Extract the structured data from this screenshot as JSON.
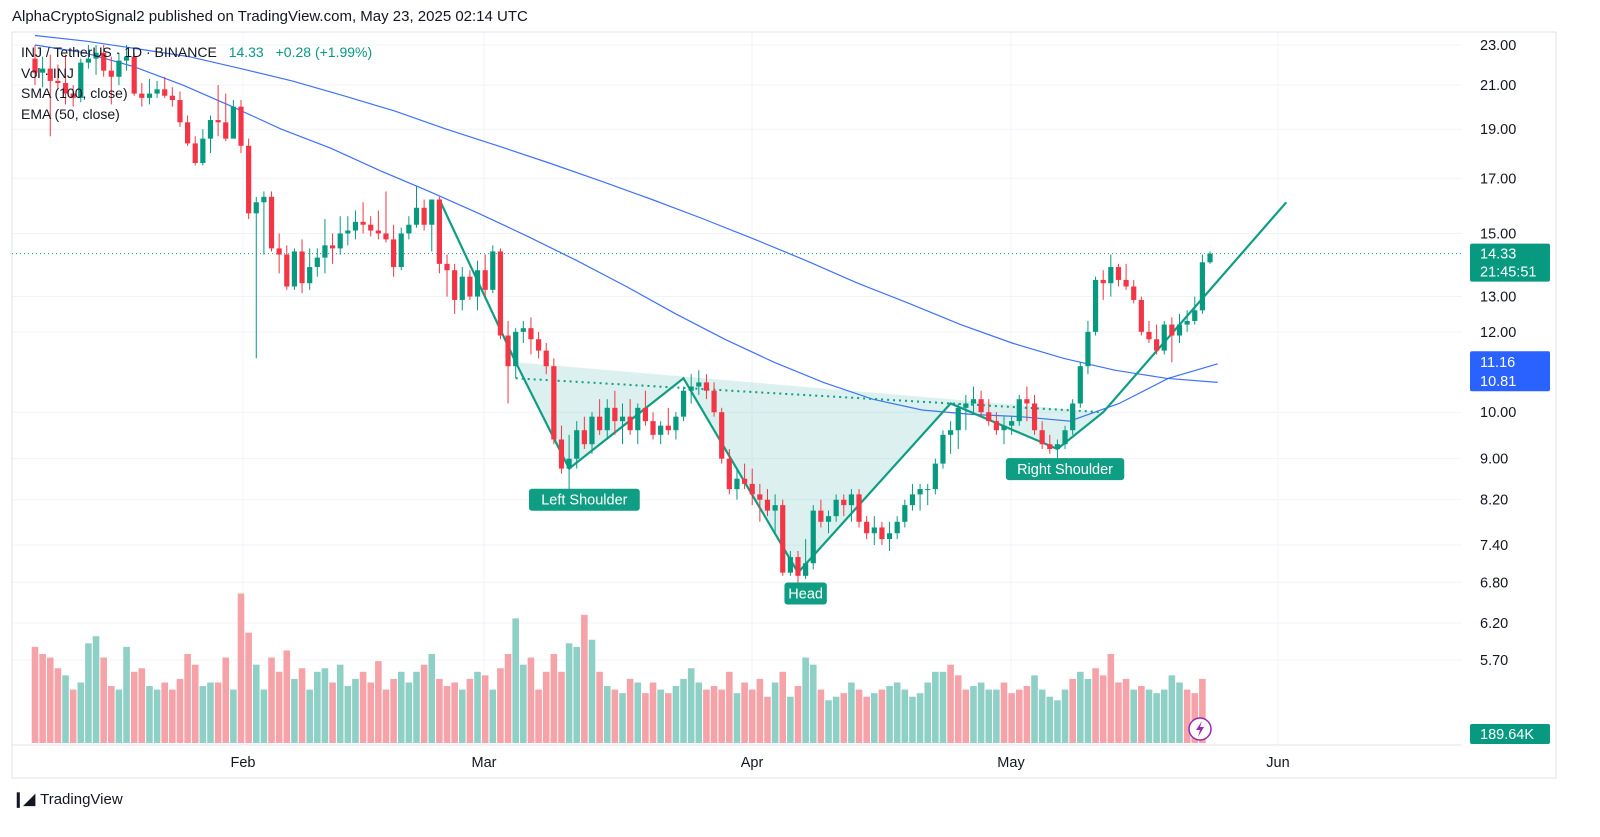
{
  "header": {
    "publish_line": "AlphaCryptoSignal2 published on TradingView.com, May 23, 2025 02:14 UTC"
  },
  "legend": {
    "symbol": "INJ / TetherUS · 1D · BINANCE",
    "price": "14.33",
    "change": "+0.28 (+1.99%)",
    "vol": "Vol · INJ",
    "sma": "SMA (100, close)",
    "ema": "EMA (50, close)"
  },
  "footer": {
    "brand": "TradingView"
  },
  "colors": {
    "up": "#089981",
    "down": "#f23645",
    "vol_up": "#8fd0c6",
    "vol_down": "#f5a3a8",
    "ma_line": "#2962ff",
    "pattern": "#0f9d83",
    "fill": "rgba(38,166,154,0.16)",
    "price_badge": "#089981",
    "ma_badge": "#2962ff"
  },
  "chart_data": {
    "type": "candlestick",
    "y_scale": "log",
    "ylim": [
      5.35,
      23.0
    ],
    "y_ticks": [
      "23.00",
      "21.00",
      "19.00",
      "17.00",
      "15.00",
      "13.00",
      "12.00",
      "10.00",
      "9.00",
      "8.20",
      "7.40",
      "6.80",
      "6.20",
      "5.70"
    ],
    "x_ticks": [
      "Feb",
      "Mar",
      "Apr",
      "May",
      "Jun"
    ],
    "price_badge": {
      "value": "14.33",
      "countdown": "21:45:51"
    },
    "ma_badges": [
      "11.16",
      "10.81"
    ],
    "volume_badge": "189.64K",
    "annotations": [
      "Left Shoulder",
      "Head",
      "Right Shoulder"
    ],
    "last_price": 14.33,
    "candles": [
      [
        22.3,
        23.0,
        21.0,
        21.6
      ],
      [
        21.6,
        22.4,
        20.9,
        21.8
      ],
      [
        21.8,
        22.5,
        18.7,
        21.2
      ],
      [
        21.2,
        22.0,
        20.8,
        21.1
      ],
      [
        21.1,
        22.5,
        20.1,
        20.6
      ],
      [
        20.6,
        21.0,
        20.0,
        20.4
      ],
      [
        20.4,
        22.3,
        20.2,
        22.1
      ],
      [
        22.1,
        23.0,
        21.8,
        22.3
      ],
      [
        22.3,
        23.0,
        21.5,
        22.6
      ],
      [
        22.6,
        23.0,
        21.4,
        21.7
      ],
      [
        21.7,
        22.4,
        20.1,
        21.4
      ],
      [
        21.4,
        22.6,
        21.0,
        22.2
      ],
      [
        22.2,
        23.0,
        21.7,
        22.4
      ],
      [
        22.4,
        22.6,
        20.5,
        20.6
      ],
      [
        20.6,
        21.1,
        20.0,
        20.4
      ],
      [
        20.4,
        21.3,
        20.1,
        20.6
      ],
      [
        20.6,
        21.2,
        20.4,
        20.8
      ],
      [
        20.8,
        21.4,
        20.4,
        20.5
      ],
      [
        20.5,
        20.9,
        20.0,
        20.3
      ],
      [
        20.3,
        20.7,
        19.1,
        19.3
      ],
      [
        19.3,
        19.6,
        18.3,
        18.4
      ],
      [
        18.4,
        18.7,
        17.5,
        17.6
      ],
      [
        17.6,
        19.0,
        17.5,
        18.6
      ],
      [
        18.6,
        19.6,
        18.0,
        19.4
      ],
      [
        19.4,
        21.0,
        18.7,
        19.3
      ],
      [
        19.3,
        20.6,
        18.5,
        18.6
      ],
      [
        18.6,
        20.3,
        18.6,
        20.0
      ],
      [
        20.0,
        20.3,
        18.0,
        18.3
      ],
      [
        18.3,
        18.6,
        15.5,
        15.7
      ],
      [
        15.7,
        16.3,
        11.3,
        16.1
      ],
      [
        16.1,
        16.5,
        14.3,
        16.3
      ],
      [
        16.3,
        16.5,
        14.4,
        14.5
      ],
      [
        14.5,
        15.0,
        13.7,
        14.3
      ],
      [
        14.3,
        14.6,
        13.2,
        13.3
      ],
      [
        13.3,
        14.5,
        13.2,
        14.4
      ],
      [
        14.4,
        14.8,
        13.1,
        13.4
      ],
      [
        13.4,
        14.5,
        13.2,
        13.9
      ],
      [
        13.9,
        14.5,
        13.6,
        14.2
      ],
      [
        14.2,
        15.5,
        13.7,
        14.6
      ],
      [
        14.6,
        15.0,
        14.0,
        14.5
      ],
      [
        14.5,
        15.6,
        14.3,
        15.0
      ],
      [
        15.0,
        15.6,
        14.6,
        15.1
      ],
      [
        15.1,
        15.8,
        14.8,
        15.4
      ],
      [
        15.4,
        16.1,
        15.0,
        15.3
      ],
      [
        15.3,
        15.6,
        14.9,
        15.1
      ],
      [
        15.1,
        15.8,
        14.8,
        15.0
      ],
      [
        15.0,
        16.5,
        14.7,
        14.8
      ],
      [
        14.8,
        15.3,
        13.6,
        13.9
      ],
      [
        13.9,
        15.2,
        13.8,
        15.0
      ],
      [
        15.0,
        15.6,
        14.8,
        15.3
      ],
      [
        15.3,
        16.7,
        15.2,
        15.9
      ],
      [
        15.9,
        16.2,
        15.1,
        15.3
      ],
      [
        15.3,
        16.2,
        14.4,
        16.2
      ],
      [
        16.2,
        16.3,
        13.7,
        14.0
      ],
      [
        14.0,
        14.3,
        13.0,
        13.8
      ],
      [
        13.8,
        14.0,
        12.5,
        12.9
      ],
      [
        12.9,
        13.9,
        12.6,
        13.6
      ],
      [
        13.6,
        13.8,
        12.9,
        13.0
      ],
      [
        13.0,
        14.1,
        12.6,
        13.8
      ],
      [
        13.8,
        14.3,
        13.0,
        13.2
      ],
      [
        13.2,
        14.6,
        13.1,
        14.4
      ],
      [
        14.4,
        14.5,
        11.8,
        11.9
      ],
      [
        11.9,
        12.3,
        10.2,
        11.1
      ],
      [
        11.1,
        12.1,
        10.8,
        12.0
      ],
      [
        12.0,
        12.3,
        11.7,
        12.1
      ],
      [
        12.1,
        12.4,
        11.4,
        11.8
      ],
      [
        11.8,
        12.0,
        11.3,
        11.5
      ],
      [
        11.5,
        11.7,
        10.9,
        11.1
      ],
      [
        11.1,
        11.3,
        9.3,
        9.4
      ],
      [
        9.4,
        9.7,
        8.7,
        8.8
      ],
      [
        8.8,
        9.5,
        8.4,
        9.0
      ],
      [
        9.0,
        9.8,
        8.8,
        9.6
      ],
      [
        9.6,
        9.9,
        9.2,
        9.3
      ],
      [
        9.3,
        10.0,
        9.1,
        9.9
      ],
      [
        9.9,
        10.3,
        9.5,
        9.6
      ],
      [
        9.6,
        10.3,
        9.4,
        10.1
      ],
      [
        10.1,
        10.5,
        9.5,
        9.8
      ],
      [
        9.8,
        10.2,
        9.3,
        9.9
      ],
      [
        9.9,
        10.3,
        9.5,
        9.6
      ],
      [
        9.6,
        10.2,
        9.3,
        10.1
      ],
      [
        10.1,
        10.5,
        9.7,
        9.8
      ],
      [
        9.8,
        10.0,
        9.4,
        9.5
      ],
      [
        9.5,
        9.8,
        9.3,
        9.7
      ],
      [
        9.7,
        10.1,
        9.5,
        9.6
      ],
      [
        9.6,
        10.0,
        9.4,
        9.9
      ],
      [
        9.9,
        10.6,
        9.8,
        10.5
      ],
      [
        10.5,
        10.9,
        10.2,
        10.6
      ],
      [
        10.6,
        11.0,
        10.4,
        10.7
      ],
      [
        10.7,
        10.9,
        10.3,
        10.5
      ],
      [
        10.5,
        10.7,
        9.9,
        10.0
      ],
      [
        10.0,
        10.1,
        8.9,
        9.0
      ],
      [
        9.0,
        9.2,
        8.3,
        8.4
      ],
      [
        8.4,
        8.8,
        8.2,
        8.6
      ],
      [
        8.6,
        8.9,
        8.4,
        8.5
      ],
      [
        8.5,
        8.8,
        8.1,
        8.3
      ],
      [
        8.3,
        8.5,
        7.8,
        8.2
      ],
      [
        8.2,
        8.4,
        7.9,
        8.0
      ],
      [
        8.0,
        8.3,
        7.6,
        8.1
      ],
      [
        8.1,
        8.2,
        6.9,
        6.95
      ],
      [
        6.95,
        7.3,
        6.9,
        7.2
      ],
      [
        7.2,
        7.3,
        6.5,
        6.9
      ],
      [
        6.9,
        7.5,
        6.85,
        7.1
      ],
      [
        7.1,
        8.1,
        7.0,
        8.0
      ],
      [
        8.0,
        8.2,
        7.7,
        7.8
      ],
      [
        7.8,
        8.0,
        7.6,
        7.9
      ],
      [
        7.9,
        8.3,
        7.8,
        8.2
      ],
      [
        8.2,
        8.3,
        7.9,
        8.1
      ],
      [
        8.1,
        8.4,
        7.8,
        8.3
      ],
      [
        8.3,
        8.4,
        7.7,
        7.8
      ],
      [
        7.8,
        7.9,
        7.5,
        7.6
      ],
      [
        7.6,
        7.9,
        7.4,
        7.7
      ],
      [
        7.7,
        7.8,
        7.4,
        7.5
      ],
      [
        7.5,
        7.8,
        7.3,
        7.6
      ],
      [
        7.6,
        7.9,
        7.5,
        7.8
      ],
      [
        7.8,
        8.2,
        7.7,
        8.1
      ],
      [
        8.1,
        8.5,
        8.0,
        8.3
      ],
      [
        8.3,
        8.5,
        8.0,
        8.4
      ],
      [
        8.4,
        8.5,
        8.1,
        8.4
      ],
      [
        8.4,
        9.0,
        8.3,
        8.9
      ],
      [
        8.9,
        9.6,
        8.8,
        9.5
      ],
      [
        9.5,
        9.8,
        9.1,
        9.6
      ],
      [
        9.6,
        10.2,
        9.2,
        10.1
      ],
      [
        10.1,
        10.4,
        9.6,
        10.2
      ],
      [
        10.2,
        10.6,
        10.0,
        10.3
      ],
      [
        10.3,
        10.5,
        9.9,
        10.0
      ],
      [
        10.0,
        10.3,
        9.7,
        9.8
      ],
      [
        9.8,
        10.0,
        9.5,
        9.6
      ],
      [
        9.6,
        9.9,
        9.3,
        9.7
      ],
      [
        9.7,
        9.9,
        9.5,
        9.8
      ],
      [
        9.8,
        10.4,
        9.7,
        10.3
      ],
      [
        10.3,
        10.6,
        9.8,
        10.2
      ],
      [
        10.2,
        10.4,
        9.5,
        9.6
      ],
      [
        9.6,
        9.8,
        9.2,
        9.3
      ],
      [
        9.3,
        9.5,
        9.1,
        9.2
      ],
      [
        9.2,
        9.4,
        9.0,
        9.3
      ],
      [
        9.3,
        9.7,
        9.2,
        9.6
      ],
      [
        9.6,
        10.3,
        9.5,
        10.2
      ],
      [
        10.2,
        11.2,
        10.1,
        11.1
      ],
      [
        11.1,
        12.3,
        10.9,
        12.0
      ],
      [
        12.0,
        13.6,
        11.9,
        13.5
      ],
      [
        13.5,
        13.8,
        12.9,
        13.4
      ],
      [
        13.4,
        14.3,
        13.0,
        13.9
      ],
      [
        13.9,
        14.0,
        13.3,
        13.5
      ],
      [
        13.5,
        14.0,
        13.2,
        13.3
      ],
      [
        13.3,
        13.5,
        12.8,
        12.9
      ],
      [
        12.9,
        13.0,
        11.9,
        12.0
      ],
      [
        12.0,
        12.3,
        11.7,
        11.8
      ],
      [
        11.8,
        12.2,
        11.4,
        11.5
      ],
      [
        11.5,
        12.3,
        11.4,
        12.2
      ],
      [
        12.2,
        12.4,
        11.2,
        11.9
      ],
      [
        11.9,
        12.5,
        11.7,
        12.2
      ],
      [
        12.2,
        12.6,
        12.0,
        12.3
      ],
      [
        12.3,
        13.0,
        12.2,
        12.6
      ],
      [
        12.6,
        14.3,
        12.5,
        14.05
      ],
      [
        14.05,
        14.4,
        14.0,
        14.33
      ]
    ],
    "volume": [
      54,
      50,
      48,
      42,
      38,
      30,
      34,
      56,
      60,
      48,
      32,
      30,
      54,
      40,
      42,
      32,
      30,
      34,
      30,
      36,
      50,
      44,
      32,
      34,
      34,
      48,
      30,
      84,
      62,
      44,
      30,
      48,
      40,
      52,
      36,
      42,
      30,
      40,
      42,
      34,
      44,
      32,
      36,
      40,
      34,
      46,
      30,
      36,
      40,
      34,
      40,
      44,
      50,
      36,
      32,
      34,
      30,
      36,
      40,
      38,
      30,
      42,
      50,
      70,
      44,
      48,
      30,
      40,
      50,
      40,
      56,
      54,
      72,
      58,
      40,
      32,
      30,
      28,
      36,
      34,
      28,
      34,
      30,
      28,
      32,
      36,
      42,
      34,
      30,
      32,
      30,
      40,
      28,
      34,
      30,
      36,
      26,
      34,
      40,
      26,
      32,
      48,
      44,
      30,
      24,
      26,
      28,
      34,
      30,
      26,
      28,
      30,
      32,
      34,
      30,
      26,
      28,
      34,
      40,
      40,
      44,
      38,
      30,
      32,
      34,
      30,
      30,
      34,
      28,
      30,
      32,
      38,
      30,
      26,
      24,
      30,
      36,
      40,
      36,
      42,
      38,
      50,
      34,
      36,
      30,
      32,
      30,
      28,
      30,
      38,
      34,
      30,
      28,
      36
    ],
    "volume_dir": [
      0,
      0,
      0,
      0,
      1,
      0,
      1,
      1,
      1,
      0,
      0,
      1,
      1,
      0,
      0,
      1,
      1,
      0,
      0,
      0,
      0,
      0,
      1,
      1,
      0,
      0,
      1,
      0,
      0,
      1,
      1,
      0,
      0,
      0,
      1,
      0,
      1,
      1,
      1,
      0,
      1,
      1,
      1,
      0,
      0,
      0,
      0,
      0,
      1,
      1,
      1,
      0,
      1,
      0,
      0,
      0,
      1,
      0,
      1,
      0,
      1,
      0,
      0,
      1,
      1,
      0,
      0,
      0,
      0,
      0,
      1,
      1,
      0,
      1,
      0,
      1,
      0,
      1,
      0,
      1,
      0,
      0,
      1,
      0,
      1,
      1,
      1,
      1,
      0,
      0,
      0,
      0,
      1,
      0,
      0,
      0,
      0,
      1,
      0,
      1,
      0,
      1,
      1,
      0,
      1,
      1,
      0,
      1,
      0,
      0,
      1,
      0,
      1,
      1,
      1,
      1,
      1,
      1,
      1,
      1,
      0,
      0,
      0,
      1,
      1,
      1,
      1,
      0,
      0,
      0,
      0,
      1,
      1,
      1,
      1,
      1,
      0,
      1,
      1,
      0,
      0,
      0,
      0,
      0,
      1,
      0,
      1,
      1,
      1,
      1,
      1,
      0,
      0,
      0
    ]
  }
}
